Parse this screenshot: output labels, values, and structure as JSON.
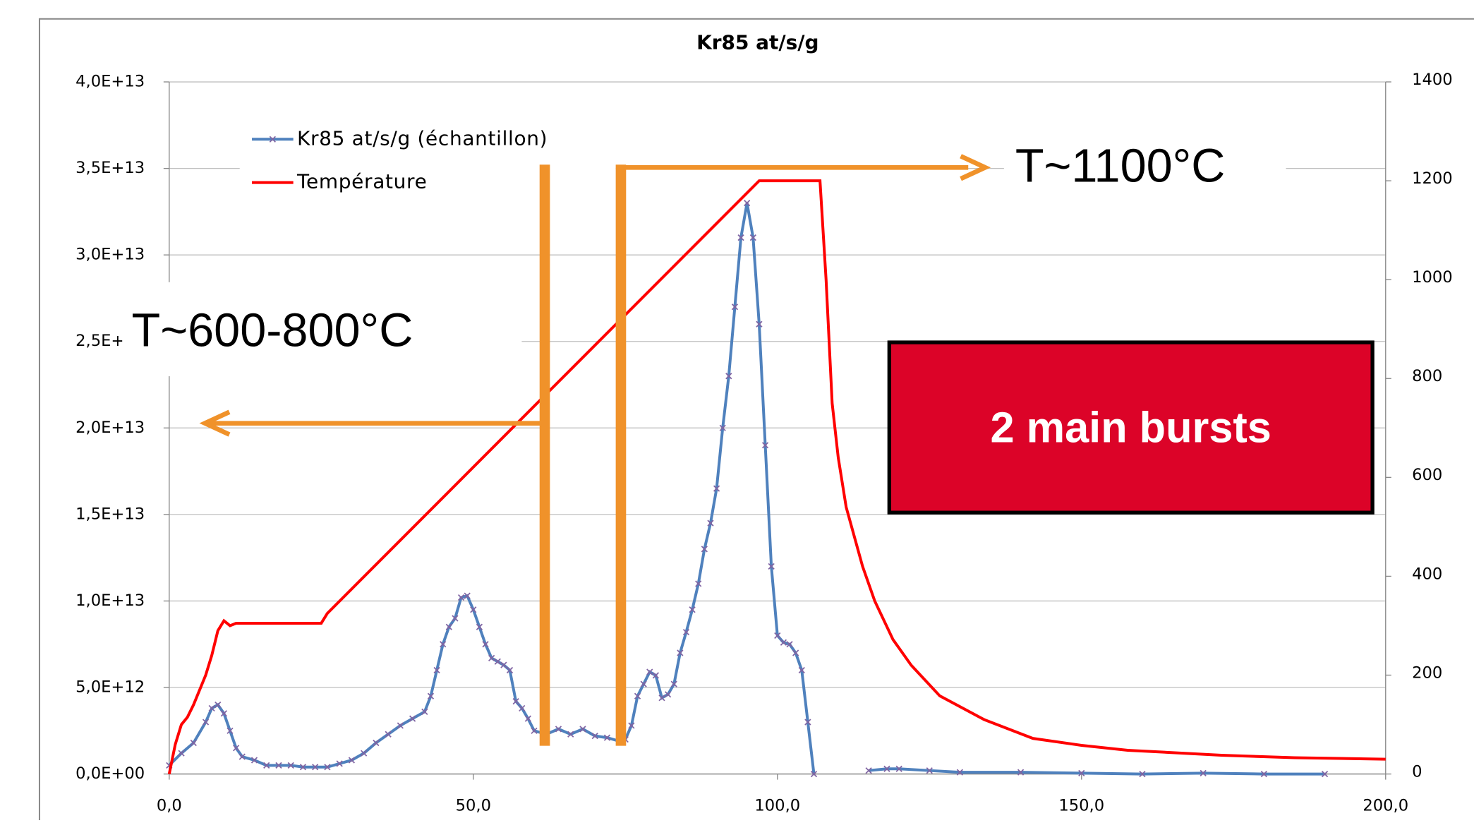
{
  "chart_data": {
    "type": "line",
    "title": "Kr85 at/s/g",
    "xlim": [
      0,
      200
    ],
    "xticks": [
      {
        "value": 0,
        "label": "0,0"
      },
      {
        "value": 50,
        "label": "50,0"
      },
      {
        "value": 100,
        "label": "100,0"
      },
      {
        "value": 150,
        "label": "150,0"
      },
      {
        "value": 200,
        "label": "200,0"
      }
    ],
    "ylim": [
      0,
      40000000000000.0
    ],
    "yticks": [
      {
        "value": 0,
        "label": "0,0E+00"
      },
      {
        "value": 5000000000000.0,
        "label": "5,0E+12"
      },
      {
        "value": 10000000000000.0,
        "label": "1,0E+13"
      },
      {
        "value": 15000000000000.0,
        "label": "1,5E+13"
      },
      {
        "value": 20000000000000.0,
        "label": "2,0E+13"
      },
      {
        "value": 25000000000000.0,
        "label": "2,5E+13"
      },
      {
        "value": 30000000000000.0,
        "label": "3,0E+13"
      },
      {
        "value": 35000000000000.0,
        "label": "3,5E+13"
      },
      {
        "value": 40000000000000.0,
        "label": "4,0E+13"
      }
    ],
    "y2lim": [
      0,
      1400
    ],
    "y2ticks": [
      0,
      200,
      400,
      600,
      800,
      1000,
      1200,
      1400
    ],
    "grid": true,
    "legend": "upper left",
    "series": [
      {
        "name": "Kr85 at/s/g (échantillon)",
        "color": "#4f81bd",
        "marker_color": "#8064a2",
        "x": [
          0,
          2,
          4,
          6,
          7,
          8,
          9,
          10,
          11,
          12,
          14,
          16,
          18,
          20,
          22,
          24,
          26,
          28,
          30,
          32,
          34,
          36,
          38,
          40,
          42,
          43,
          44,
          45,
          46,
          47,
          48,
          49,
          50,
          51,
          52,
          53,
          54,
          55,
          56,
          57,
          58,
          59,
          60,
          62,
          64,
          66,
          68,
          70,
          72,
          74,
          75,
          76,
          77,
          78,
          79,
          80,
          81,
          82,
          83,
          84,
          85,
          86,
          87,
          88,
          89,
          90,
          91,
          92,
          93,
          94,
          95,
          96,
          97,
          98,
          99,
          100,
          101,
          102,
          103,
          104,
          105,
          106,
          110,
          115,
          118,
          120,
          125,
          130,
          140,
          150,
          160,
          170,
          180,
          190
        ],
        "values": [
          500000000000.0,
          1200000000000.0,
          1800000000000.0,
          3000000000000.0,
          3800000000000.0,
          4000000000000.0,
          3500000000000.0,
          2500000000000.0,
          1500000000000.0,
          1000000000000.0,
          800000000000.0,
          500000000000.0,
          500000000000.0,
          500000000000.0,
          400000000000.0,
          400000000000.0,
          400000000000.0,
          600000000000.0,
          800000000000.0,
          1200000000000.0,
          1800000000000.0,
          2300000000000.0,
          2800000000000.0,
          3200000000000.0,
          3600000000000.0,
          4500000000000.0,
          6000000000000.0,
          7500000000000.0,
          8500000000000.0,
          9000000000000.0,
          10200000000000.0,
          10300000000000.0,
          9500000000000.0,
          8500000000000.0,
          7500000000000.0,
          6700000000000.0,
          6500000000000.0,
          6300000000000.0,
          6000000000000.0,
          4200000000000.0,
          3800000000000.0,
          3200000000000.0,
          2500000000000.0,
          2300000000000.0,
          2600000000000.0,
          2300000000000.0,
          2600000000000.0,
          2200000000000.0,
          2100000000000.0,
          1900000000000.0,
          2000000000000.0,
          2800000000000.0,
          4500000000000.0,
          5200000000000.0,
          5900000000000.0,
          5700000000000.0,
          4400000000000.0,
          4600000000000.0,
          5200000000000.0,
          7000000000000.0,
          8200000000000.0,
          9500000000000.0,
          11000000000000.0,
          13000000000000.0,
          14500000000000.0,
          16500000000000.0,
          20000000000000.0,
          23000000000000.0,
          27000000000000.0,
          31000000000000.0,
          33000000000000.0,
          31000000000000.0,
          26000000000000.0,
          19000000000000.0,
          12000000000000.0,
          8000000000000.0,
          7600000000000.0,
          7500000000000.0,
          7000000000000.0,
          6000000000000.0,
          3000000000000.0,
          0,
          null,
          200000000000.0,
          300000000000.0,
          300000000000.0,
          200000000000.0,
          100000000000.0,
          100000000000.0,
          50000000000.0,
          0,
          50000000000.0,
          0,
          0
        ]
      },
      {
        "name": "Température",
        "color": "#ff0000",
        "axis": "y2",
        "x": [
          0,
          0.5,
          1,
          2,
          3,
          4,
          5,
          6,
          7,
          8,
          9,
          10,
          11,
          25,
          26,
          97,
          107,
          108,
          109,
          110,
          111.3,
          114,
          116,
          119,
          122,
          126.7,
          134,
          142,
          150,
          157.6,
          173,
          185,
          200
        ],
        "values": [
          0,
          30,
          60,
          100,
          115,
          140,
          170,
          200,
          240,
          290,
          310,
          300,
          305,
          305,
          325,
          1200,
          1200,
          1000,
          750,
          640,
          540,
          420,
          350,
          272,
          220,
          158,
          110,
          72,
          58,
          48,
          38,
          33,
          30
        ]
      }
    ],
    "annotations": [
      "T~1100°C",
      "T~600-800°C",
      "2 main bursts"
    ]
  }
}
